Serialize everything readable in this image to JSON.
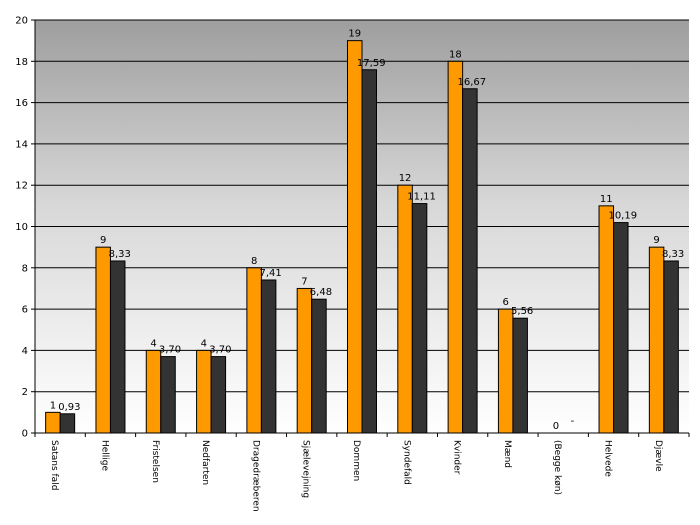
{
  "chart_data": {
    "type": "bar",
    "categories": [
      "Satans fald",
      "Hellige",
      "Fristelsen",
      "Nedfarten",
      "Dragedræberen",
      "Sjælevejning",
      "Dommen",
      "Syndefald",
      "Kvinder",
      "Mænd",
      "(Begge køn)",
      "Helvede",
      "Djævle"
    ],
    "series": [
      {
        "values": [
          1,
          9,
          4,
          4,
          8,
          7,
          19,
          12,
          18,
          6,
          0,
          11,
          9
        ],
        "labels": [
          "1",
          "9",
          "4",
          "4",
          "8",
          "7",
          "19",
          "12",
          "18",
          "6",
          "0",
          "11",
          "9"
        ],
        "color": "#FF9900"
      },
      {
        "values": [
          0.93,
          8.33,
          3.7,
          3.7,
          7.41,
          6.48,
          17.59,
          11.11,
          16.67,
          5.56,
          null,
          10.19,
          8.33
        ],
        "labels": [
          "0,93",
          "8,33",
          "3,70",
          "3,70",
          "7,41",
          "6,48",
          "17,59",
          "11,11",
          "16,67",
          "5,56",
          "-",
          "10,19",
          "8,33"
        ],
        "color": "#333333"
      }
    ],
    "yticks": [
      "0",
      "2",
      "4",
      "6",
      "8",
      "10",
      "12",
      "14",
      "16",
      "18",
      "20"
    ],
    "ylim": [
      0,
      20
    ],
    "grid": true,
    "legend": "none",
    "background": "gradient-grey-to-white"
  }
}
